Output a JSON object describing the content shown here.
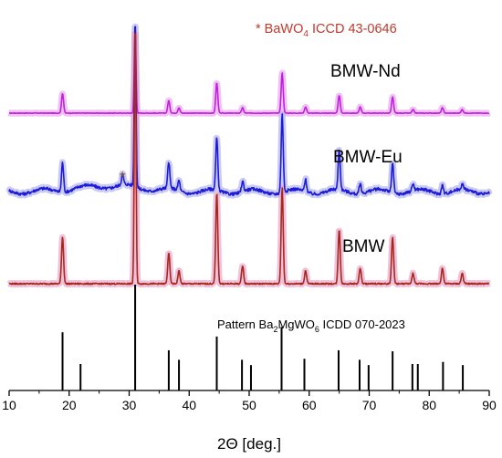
{
  "chart_data": {
    "type": "line",
    "xlabel": "2Θ [deg.]",
    "xlim": [
      10,
      90
    ],
    "x_ticks": [
      10,
      20,
      30,
      40,
      50,
      60,
      70,
      80,
      90
    ],
    "yaxis": "none",
    "annotation_ref": {
      "prefix": "* BaWO",
      "subscript": "4",
      "suffix": " ICCD 43-0646",
      "color": "#c0392b"
    },
    "impurity_marker": {
      "symbol": "*",
      "x": 28.9,
      "series": "BMW-Eu",
      "color": "#8b5a2b"
    },
    "series": [
      {
        "name": "BMW-Nd",
        "color": "#c020e0",
        "glow": "#e9a6ee",
        "noise": 0.6,
        "peaks": [
          {
            "x": 18.9,
            "h": 22
          },
          {
            "x": 31.0,
            "h": 92
          },
          {
            "x": 36.6,
            "h": 14
          },
          {
            "x": 38.3,
            "h": 6
          },
          {
            "x": 44.6,
            "h": 34
          },
          {
            "x": 48.9,
            "h": 6
          },
          {
            "x": 55.5,
            "h": 45
          },
          {
            "x": 59.4,
            "h": 7
          },
          {
            "x": 65.0,
            "h": 20
          },
          {
            "x": 68.5,
            "h": 7
          },
          {
            "x": 73.9,
            "h": 18
          },
          {
            "x": 77.3,
            "h": 4
          },
          {
            "x": 82.2,
            "h": 6
          },
          {
            "x": 85.5,
            "h": 4
          }
        ]
      },
      {
        "name": "BMW-Eu",
        "color": "#1c1cd8",
        "glow": "#b3b3f0",
        "noise": 1.8,
        "peaks": [
          {
            "x": 18.9,
            "h": 17
          },
          {
            "x": 28.9,
            "h": 6
          },
          {
            "x": 31.0,
            "h": 96
          },
          {
            "x": 36.6,
            "h": 15
          },
          {
            "x": 38.3,
            "h": 6
          },
          {
            "x": 44.6,
            "h": 30
          },
          {
            "x": 48.9,
            "h": 6
          },
          {
            "x": 55.5,
            "h": 45
          },
          {
            "x": 59.4,
            "h": 7
          },
          {
            "x": 65.0,
            "h": 23
          },
          {
            "x": 68.5,
            "h": 6
          },
          {
            "x": 73.9,
            "h": 17
          },
          {
            "x": 77.3,
            "h": 4
          },
          {
            "x": 82.2,
            "h": 5
          },
          {
            "x": 85.5,
            "h": 3
          }
        ]
      },
      {
        "name": "BMW",
        "color": "#a8281c",
        "glow": "#e9a6cc",
        "noise": 0.5,
        "peaks": [
          {
            "x": 18.9,
            "h": 18
          },
          {
            "x": 31.0,
            "h": 100
          },
          {
            "x": 36.6,
            "h": 12
          },
          {
            "x": 38.3,
            "h": 5
          },
          {
            "x": 44.6,
            "h": 35
          },
          {
            "x": 48.9,
            "h": 7
          },
          {
            "x": 55.5,
            "h": 37
          },
          {
            "x": 59.4,
            "h": 5
          },
          {
            "x": 65.0,
            "h": 21
          },
          {
            "x": 68.5,
            "h": 6
          },
          {
            "x": 73.9,
            "h": 18
          },
          {
            "x": 77.3,
            "h": 4
          },
          {
            "x": 82.2,
            "h": 6
          },
          {
            "x": 85.5,
            "h": 4
          }
        ]
      }
    ],
    "reference": {
      "prefix": "Pattern Ba",
      "sub1": "2",
      "mid": "MgWO",
      "sub2": "6",
      "suffix": " ICDD 070-2023",
      "color": "#000000",
      "lines": [
        {
          "x": 18.9,
          "h": 55
        },
        {
          "x": 21.9,
          "h": 25
        },
        {
          "x": 31.0,
          "h": 100
        },
        {
          "x": 36.6,
          "h": 38
        },
        {
          "x": 38.3,
          "h": 29
        },
        {
          "x": 44.6,
          "h": 51
        },
        {
          "x": 48.8,
          "h": 29
        },
        {
          "x": 50.3,
          "h": 24
        },
        {
          "x": 55.4,
          "h": 60
        },
        {
          "x": 59.2,
          "h": 30
        },
        {
          "x": 64.9,
          "h": 38
        },
        {
          "x": 68.4,
          "h": 29
        },
        {
          "x": 69.9,
          "h": 24
        },
        {
          "x": 73.9,
          "h": 37
        },
        {
          "x": 77.2,
          "h": 25
        },
        {
          "x": 78.1,
          "h": 25
        },
        {
          "x": 82.3,
          "h": 27
        },
        {
          "x": 85.6,
          "h": 24
        }
      ]
    }
  }
}
